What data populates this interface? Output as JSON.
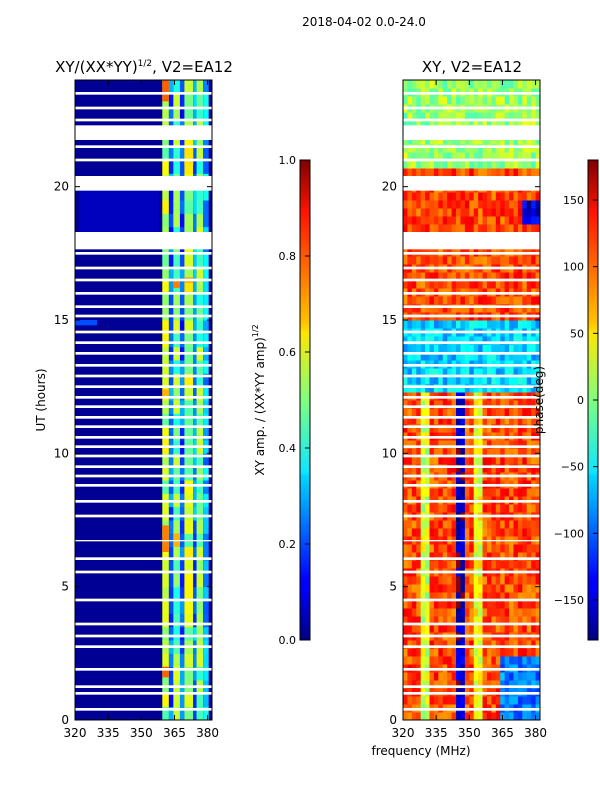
{
  "figure": {
    "suptitle": "2018-04-02 0.0-24.0",
    "xlabel_shared": "frequency (MHz)"
  },
  "chart_data": [
    {
      "type": "heatmap",
      "id": "amp",
      "title": "XY/(XX*YY)",
      "title_exponent": "1/2",
      "title_suffix": ", V2=EA12",
      "xlabel": "",
      "ylabel": "UT (hours)",
      "xlim": [
        320,
        382
      ],
      "ylim": [
        0,
        24
      ],
      "xticks": [
        320,
        335,
        350,
        365,
        380
      ],
      "yticks": [
        0,
        5,
        10,
        15,
        20
      ],
      "colormap": "jet",
      "colorbar": {
        "label": "XY amp. / (XX*YY amp)",
        "label_exponent": "1/2",
        "range": [
          0.0,
          1.0
        ],
        "ticks": [
          0.0,
          0.2,
          0.4,
          0.6,
          0.8,
          1.0
        ],
        "tick_labels": [
          "0.0",
          "0.2",
          "0.4",
          "0.6",
          "0.8",
          "1.0"
        ]
      },
      "background_value": 0.02,
      "bright_channel_bands": [
        {
          "freq": [
            359.5,
            362.5
          ],
          "value": 0.55
        },
        {
          "freq": [
            362.5,
            364.5
          ],
          "value": 0.22
        },
        {
          "freq": [
            364.5,
            367.5
          ],
          "value": 0.5
        },
        {
          "freq": [
            367.5,
            369.5
          ],
          "value": 0.2
        },
        {
          "freq": [
            369.5,
            373.5
          ],
          "value": 0.55
        },
        {
          "freq": [
            373.5,
            375.0
          ],
          "value": 0.25
        },
        {
          "freq": [
            375.0,
            378.0
          ],
          "value": 0.5
        },
        {
          "freq": [
            378.0,
            380.5
          ],
          "value": 0.3
        }
      ],
      "hot_patches": [
        {
          "freq": [
            359.5,
            362.5
          ],
          "ut": [
            1.6,
            2.0
          ],
          "value": 0.78
        },
        {
          "freq": [
            364.5,
            367.5
          ],
          "ut": [
            1.5,
            2.0
          ],
          "value": 0.6
        },
        {
          "freq": [
            359.5,
            362.5
          ],
          "ut": [
            6.3,
            7.3
          ],
          "value": 0.75
        },
        {
          "freq": [
            364.5,
            367.5
          ],
          "ut": [
            6.5,
            7.0
          ],
          "value": 0.7
        },
        {
          "freq": [
            359.5,
            362.5
          ],
          "ut": [
            12.1,
            12.4
          ],
          "value": 0.7
        },
        {
          "freq": [
            364.5,
            367.5
          ],
          "ut": [
            16.2,
            16.5
          ],
          "value": 0.75
        },
        {
          "freq": [
            369.5,
            373.5
          ],
          "ut": [
            16.4,
            16.6
          ],
          "value": 0.72
        },
        {
          "freq": [
            359.5,
            362.5
          ],
          "ut": [
            23.2,
            24.0
          ],
          "value": 0.78
        },
        {
          "freq": [
            369.5,
            373.5
          ],
          "ut": [
            20.8,
            21.5
          ],
          "value": 0.65
        },
        {
          "freq": [
            320.0,
            330.0
          ],
          "ut": [
            14.8,
            15.0
          ],
          "value": 0.2
        }
      ]
    },
    {
      "type": "heatmap",
      "id": "phase",
      "title": "XY, V2=EA12",
      "xlabel": "",
      "ylabel": "",
      "xlim": [
        320,
        382
      ],
      "ylim": [
        0,
        24
      ],
      "xticks": [
        320,
        335,
        350,
        365,
        380
      ],
      "yticks": [
        0,
        5,
        10,
        15,
        20
      ],
      "colormap": "jet",
      "colorbar": {
        "label": "phase(deg)",
        "range": [
          -180,
          180
        ],
        "ticks": [
          -150,
          -100,
          -50,
          0,
          50,
          100,
          150
        ],
        "tick_labels": [
          "−150",
          "−100",
          "−50",
          "0",
          "50",
          "100",
          "150"
        ]
      },
      "base_phase_deg": 110,
      "stripe_bands": [
        {
          "freq": [
            328,
            332
          ],
          "phase": 25,
          "ut": [
            0,
            14.5
          ]
        },
        {
          "freq": [
            344,
            349
          ],
          "phase": -160,
          "ut": [
            0,
            14.5
          ]
        },
        {
          "freq": [
            353,
            356
          ],
          "phase": 40,
          "ut": [
            0,
            14.5
          ]
        },
        {
          "freq": [
            365,
            382
          ],
          "phase": -90,
          "ut": [
            0,
            2.5
          ]
        },
        {
          "freq": [
            320,
            382
          ],
          "phase": -60,
          "ut": [
            12.3,
            15.0
          ]
        },
        {
          "freq": [
            320,
            382
          ],
          "phase": 10,
          "ut": [
            20.8,
            24.0
          ]
        },
        {
          "freq": [
            374,
            382
          ],
          "phase": -150,
          "ut": [
            18.5,
            19.6
          ]
        }
      ]
    }
  ],
  "ut_gaps_hours": [
    [
      0.35,
      0.45
    ],
    [
      0.95,
      1.05
    ],
    [
      1.2,
      1.3
    ],
    [
      1.85,
      1.95
    ],
    [
      2.7,
      2.8
    ],
    [
      3.1,
      3.2
    ],
    [
      3.55,
      3.65
    ],
    [
      4.45,
      4.55
    ],
    [
      5.5,
      5.6
    ],
    [
      6.0,
      6.1
    ],
    [
      6.7,
      6.75
    ],
    [
      7.6,
      7.7
    ],
    [
      8.15,
      8.25
    ],
    [
      8.75,
      8.85
    ],
    [
      9.1,
      9.2
    ],
    [
      9.45,
      9.55
    ],
    [
      9.85,
      9.95
    ],
    [
      10.2,
      10.3
    ],
    [
      10.55,
      10.65
    ],
    [
      10.95,
      11.05
    ],
    [
      11.3,
      11.4
    ],
    [
      11.7,
      11.8
    ],
    [
      12.05,
      12.15
    ],
    [
      12.45,
      12.55
    ],
    [
      12.85,
      12.95
    ],
    [
      13.25,
      13.35
    ],
    [
      13.7,
      13.8
    ],
    [
      14.1,
      14.2
    ],
    [
      14.5,
      14.6
    ],
    [
      15.1,
      15.2
    ],
    [
      15.45,
      15.55
    ],
    [
      15.95,
      16.05
    ],
    [
      16.45,
      16.55
    ],
    [
      16.9,
      17.0
    ],
    [
      17.45,
      17.55
    ],
    [
      17.65,
      18.3
    ],
    [
      19.85,
      20.4
    ],
    [
      20.95,
      21.05
    ],
    [
      21.45,
      21.55
    ],
    [
      21.75,
      22.3
    ],
    [
      22.45,
      22.55
    ],
    [
      22.9,
      23.0
    ],
    [
      23.45,
      23.55
    ]
  ]
}
